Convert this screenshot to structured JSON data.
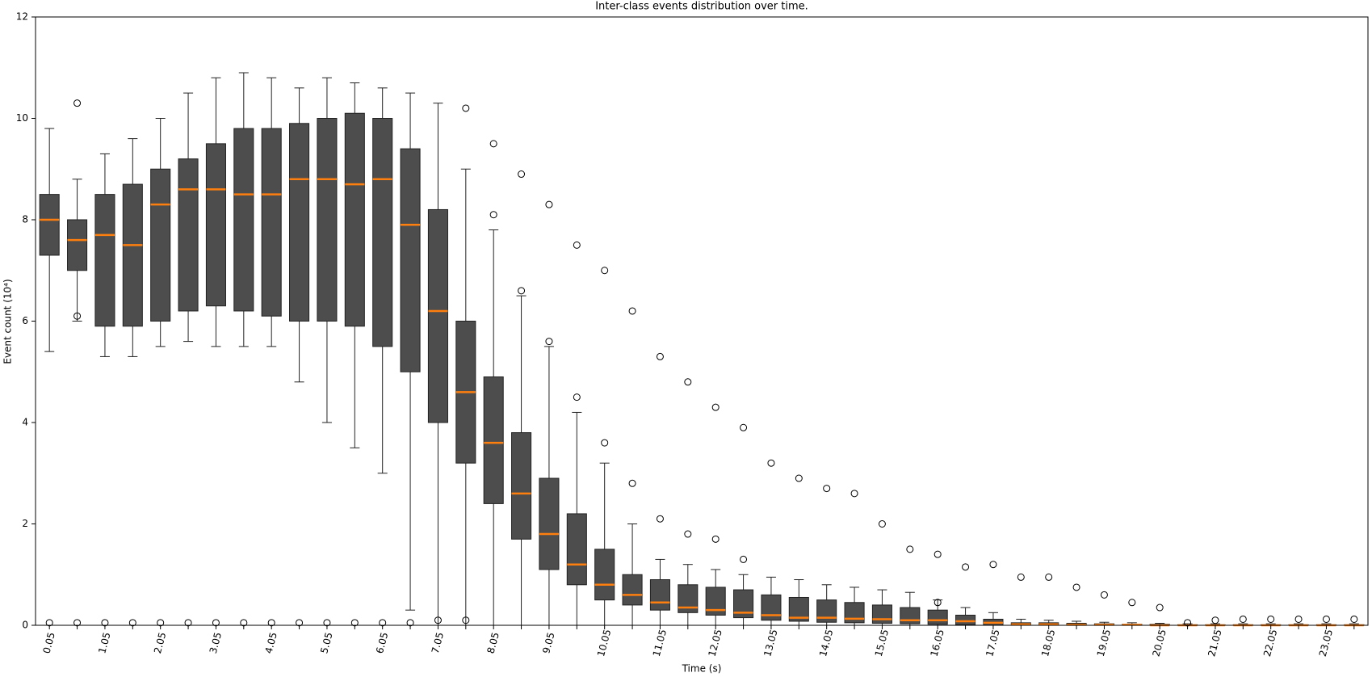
{
  "chart_data": {
    "type": "box",
    "title": "Inter-class events distribution over time.",
    "x_label": "Time (s)",
    "y_label": "Event count (10⁴)",
    "ylim": [
      0,
      12
    ],
    "yticks": [
      0,
      2,
      4,
      6,
      8,
      10,
      12
    ],
    "box_color": "#4d4d4d",
    "median_color": "#ff7f0e",
    "categories": [
      "0.05",
      null,
      "1.05",
      null,
      "2.05",
      null,
      "3.05",
      null,
      "4.05",
      null,
      "5.05",
      null,
      "6.05",
      null,
      "7.05",
      null,
      "8.05",
      null,
      "9.05",
      null,
      "10.05",
      null,
      "11.05",
      null,
      "12.05",
      null,
      "13.05",
      null,
      "14.05",
      null,
      "15.05",
      null,
      "16.05",
      null,
      "17.05",
      null,
      "18.05",
      null,
      "19.05",
      null,
      "20.05",
      null,
      "21.05",
      null,
      "22.05",
      null,
      "23.05",
      null
    ],
    "boxes": [
      {
        "whislo": 5.4,
        "q1": 7.3,
        "med": 8.0,
        "q3": 8.5,
        "whishi": 9.8,
        "fliers": [
          0.05
        ]
      },
      {
        "whislo": 6.0,
        "q1": 7.0,
        "med": 7.6,
        "q3": 8.0,
        "whishi": 8.8,
        "fliers": [
          10.3,
          6.1,
          0.05
        ]
      },
      {
        "whislo": 5.3,
        "q1": 5.9,
        "med": 7.7,
        "q3": 8.5,
        "whishi": 9.3,
        "fliers": [
          0.05
        ]
      },
      {
        "whislo": 5.3,
        "q1": 5.9,
        "med": 7.5,
        "q3": 8.7,
        "whishi": 9.6,
        "fliers": [
          0.05
        ]
      },
      {
        "whislo": 5.5,
        "q1": 6.0,
        "med": 8.3,
        "q3": 9.0,
        "whishi": 10.0,
        "fliers": [
          0.05
        ]
      },
      {
        "whislo": 5.6,
        "q1": 6.2,
        "med": 8.6,
        "q3": 9.2,
        "whishi": 10.5,
        "fliers": [
          0.05
        ]
      },
      {
        "whislo": 5.5,
        "q1": 6.3,
        "med": 8.6,
        "q3": 9.5,
        "whishi": 10.8,
        "fliers": [
          0.05
        ]
      },
      {
        "whislo": 5.5,
        "q1": 6.2,
        "med": 8.5,
        "q3": 9.8,
        "whishi": 10.9,
        "fliers": [
          0.05
        ]
      },
      {
        "whislo": 5.5,
        "q1": 6.1,
        "med": 8.5,
        "q3": 9.8,
        "whishi": 10.8,
        "fliers": [
          0.05
        ]
      },
      {
        "whislo": 4.8,
        "q1": 6.0,
        "med": 8.8,
        "q3": 9.9,
        "whishi": 10.6,
        "fliers": [
          0.05
        ]
      },
      {
        "whislo": 4.0,
        "q1": 6.0,
        "med": 8.8,
        "q3": 10.0,
        "whishi": 10.8,
        "fliers": [
          0.05
        ]
      },
      {
        "whislo": 3.5,
        "q1": 5.9,
        "med": 8.7,
        "q3": 10.1,
        "whishi": 10.7,
        "fliers": [
          0.05
        ]
      },
      {
        "whislo": 3.0,
        "q1": 5.5,
        "med": 8.8,
        "q3": 10.0,
        "whishi": 10.6,
        "fliers": [
          0.05
        ]
      },
      {
        "whislo": 0.3,
        "q1": 5.0,
        "med": 7.9,
        "q3": 9.4,
        "whishi": 10.5,
        "fliers": [
          0.05
        ]
      },
      {
        "whislo": 0,
        "q1": 4.0,
        "med": 6.2,
        "q3": 8.2,
        "whishi": 10.3,
        "fliers": [
          0.1
        ]
      },
      {
        "whislo": 0,
        "q1": 3.2,
        "med": 4.6,
        "q3": 6.0,
        "whishi": 9.0,
        "fliers": [
          10.2,
          0.1
        ]
      },
      {
        "whislo": 0,
        "q1": 2.4,
        "med": 3.6,
        "q3": 4.9,
        "whishi": 7.8,
        "fliers": [
          9.5,
          8.1
        ]
      },
      {
        "whislo": 0,
        "q1": 1.7,
        "med": 2.6,
        "q3": 3.8,
        "whishi": 6.5,
        "fliers": [
          8.9,
          6.6
        ]
      },
      {
        "whislo": 0,
        "q1": 1.1,
        "med": 1.8,
        "q3": 2.9,
        "whishi": 5.5,
        "fliers": [
          8.3,
          5.6
        ]
      },
      {
        "whislo": 0,
        "q1": 0.8,
        "med": 1.2,
        "q3": 2.2,
        "whishi": 4.2,
        "fliers": [
          7.5,
          4.5
        ]
      },
      {
        "whislo": 0,
        "q1": 0.5,
        "med": 0.8,
        "q3": 1.5,
        "whishi": 3.2,
        "fliers": [
          7.0,
          3.6
        ]
      },
      {
        "whislo": 0,
        "q1": 0.4,
        "med": 0.6,
        "q3": 1.0,
        "whishi": 2.0,
        "fliers": [
          6.2,
          2.8
        ]
      },
      {
        "whislo": 0,
        "q1": 0.3,
        "med": 0.45,
        "q3": 0.9,
        "whishi": 1.3,
        "fliers": [
          5.3,
          2.1
        ]
      },
      {
        "whislo": 0,
        "q1": 0.25,
        "med": 0.35,
        "q3": 0.8,
        "whishi": 1.2,
        "fliers": [
          4.8,
          1.8
        ]
      },
      {
        "whislo": 0,
        "q1": 0.2,
        "med": 0.3,
        "q3": 0.75,
        "whishi": 1.1,
        "fliers": [
          4.3,
          1.7
        ]
      },
      {
        "whislo": 0,
        "q1": 0.15,
        "med": 0.25,
        "q3": 0.7,
        "whishi": 1.0,
        "fliers": [
          3.9,
          1.3
        ]
      },
      {
        "whislo": 0,
        "q1": 0.1,
        "med": 0.2,
        "q3": 0.6,
        "whishi": 0.95,
        "fliers": [
          3.2
        ]
      },
      {
        "whislo": 0,
        "q1": 0.08,
        "med": 0.15,
        "q3": 0.55,
        "whishi": 0.9,
        "fliers": [
          2.9
        ]
      },
      {
        "whislo": 0,
        "q1": 0.06,
        "med": 0.15,
        "q3": 0.5,
        "whishi": 0.8,
        "fliers": [
          2.7
        ]
      },
      {
        "whislo": 0,
        "q1": 0.05,
        "med": 0.13,
        "q3": 0.45,
        "whishi": 0.75,
        "fliers": [
          2.6
        ]
      },
      {
        "whislo": 0,
        "q1": 0.04,
        "med": 0.12,
        "q3": 0.4,
        "whishi": 0.7,
        "fliers": [
          2.0
        ]
      },
      {
        "whislo": 0,
        "q1": 0.03,
        "med": 0.1,
        "q3": 0.35,
        "whishi": 0.65,
        "fliers": [
          1.5
        ]
      },
      {
        "whislo": 0,
        "q1": 0.02,
        "med": 0.1,
        "q3": 0.3,
        "whishi": 0.5,
        "fliers": [
          1.4,
          0.45
        ]
      },
      {
        "whislo": 0,
        "q1": 0.01,
        "med": 0.08,
        "q3": 0.2,
        "whishi": 0.35,
        "fliers": [
          1.15
        ]
      },
      {
        "whislo": 0,
        "q1": 0,
        "med": 0.05,
        "q3": 0.12,
        "whishi": 0.25,
        "fliers": [
          1.2
        ]
      },
      {
        "whislo": 0,
        "q1": 0,
        "med": 0.02,
        "q3": 0.05,
        "whishi": 0.12,
        "fliers": [
          0.95
        ]
      },
      {
        "whislo": 0,
        "q1": 0,
        "med": 0.02,
        "q3": 0.05,
        "whishi": 0.1,
        "fliers": [
          0.95
        ]
      },
      {
        "whislo": 0,
        "q1": 0,
        "med": 0.01,
        "q3": 0.04,
        "whishi": 0.08,
        "fliers": [
          0.75
        ]
      },
      {
        "whislo": 0,
        "q1": 0,
        "med": 0.01,
        "q3": 0.03,
        "whishi": 0.06,
        "fliers": [
          0.6
        ]
      },
      {
        "whislo": 0,
        "q1": 0,
        "med": 0.01,
        "q3": 0.02,
        "whishi": 0.05,
        "fliers": [
          0.45
        ]
      },
      {
        "whislo": 0,
        "q1": 0,
        "med": 0,
        "q3": 0.02,
        "whishi": 0.04,
        "fliers": [
          0.35
        ]
      },
      {
        "whislo": 0,
        "q1": 0,
        "med": 0,
        "q3": 0.01,
        "whishi": 0.03,
        "fliers": [
          0.05
        ]
      },
      {
        "whislo": 0,
        "q1": 0,
        "med": 0,
        "q3": 0.01,
        "whishi": 0.03,
        "fliers": [
          0.1
        ]
      },
      {
        "whislo": 0,
        "q1": 0,
        "med": 0,
        "q3": 0.01,
        "whishi": 0.03,
        "fliers": [
          0.12
        ]
      },
      {
        "whislo": 0,
        "q1": 0,
        "med": 0,
        "q3": 0.01,
        "whishi": 0.03,
        "fliers": [
          0.12
        ]
      },
      {
        "whislo": 0,
        "q1": 0,
        "med": 0,
        "q3": 0.01,
        "whishi": 0.03,
        "fliers": [
          0.12
        ]
      },
      {
        "whislo": 0,
        "q1": 0,
        "med": 0,
        "q3": 0.01,
        "whishi": 0.03,
        "fliers": [
          0.12
        ]
      },
      {
        "whislo": 0,
        "q1": 0,
        "med": 0,
        "q3": 0.01,
        "whishi": 0.03,
        "fliers": [
          0.12
        ]
      }
    ]
  }
}
